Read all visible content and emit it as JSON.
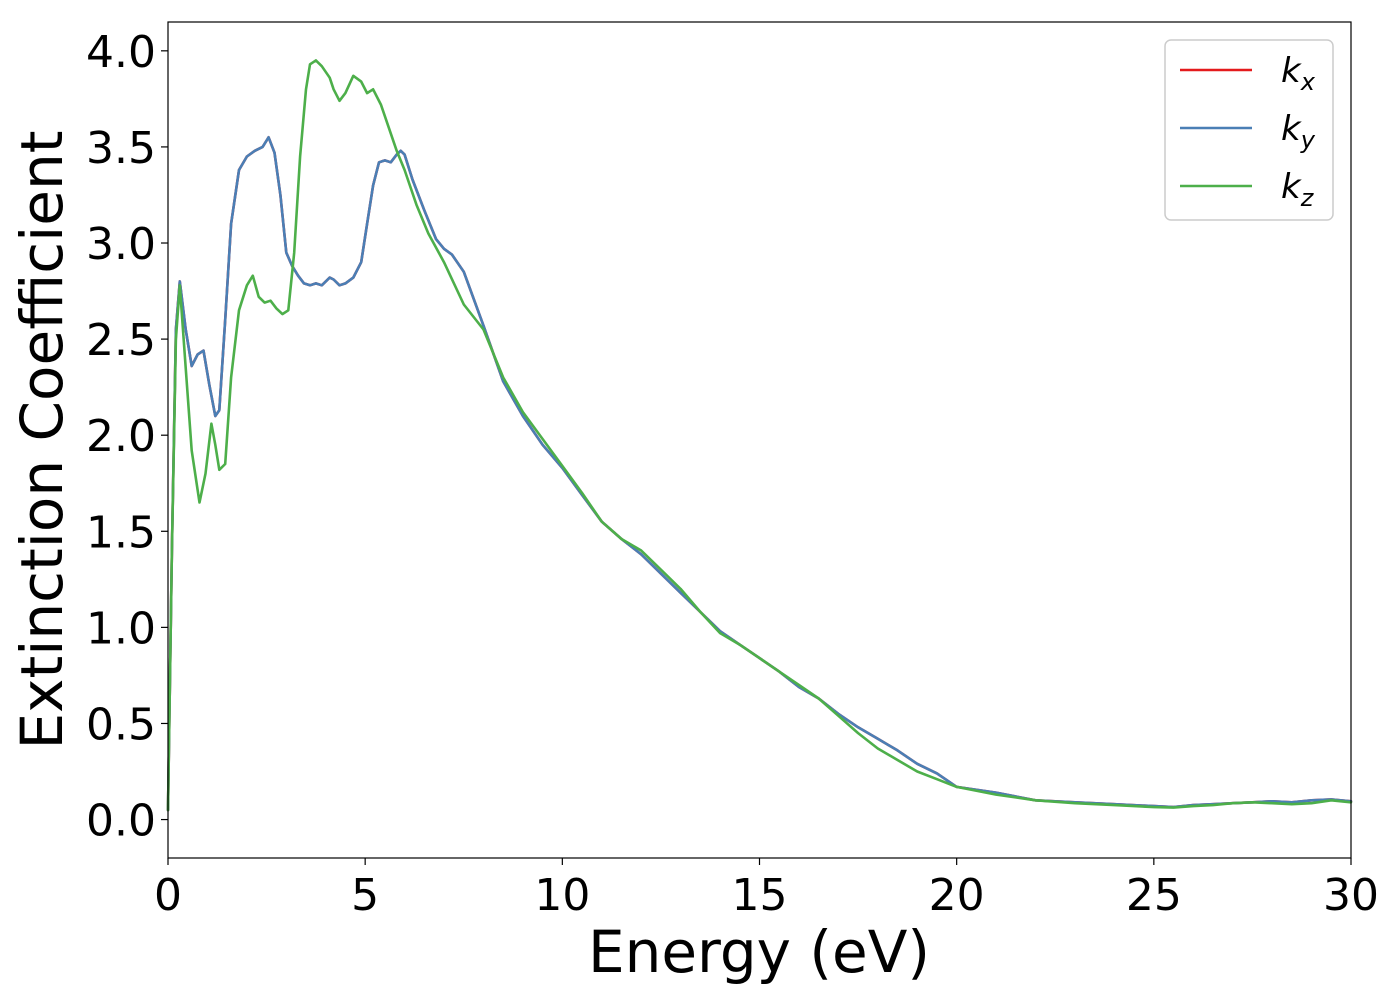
{
  "chart_data": {
    "type": "line",
    "title": "",
    "xlabel": "Energy (eV)",
    "ylabel": "Extinction Coefficient",
    "xlim": [
      0,
      30
    ],
    "ylim": [
      -0.2,
      4.15
    ],
    "xticks": [
      0,
      5,
      10,
      15,
      20,
      25,
      30
    ],
    "xtick_labels": [
      "0",
      "5",
      "10",
      "15",
      "20",
      "25",
      "30"
    ],
    "yticks": [
      0.0,
      0.5,
      1.0,
      1.5,
      2.0,
      2.5,
      3.0,
      3.5,
      4.0
    ],
    "ytick_labels": [
      "0.0",
      "0.5",
      "1.0",
      "1.5",
      "2.0",
      "2.5",
      "3.0",
      "3.5",
      "4.0"
    ],
    "grid": false,
    "legend_position": "top-right",
    "series": [
      {
        "name": "k",
        "subscript": "x",
        "color": "#e41a1c",
        "x": [
          0,
          0.1,
          0.2,
          0.3,
          0.45,
          0.6,
          0.75,
          0.9,
          1.05,
          1.2,
          1.3,
          1.45,
          1.6,
          1.8,
          2.0,
          2.2,
          2.4,
          2.55,
          2.7,
          2.85,
          3.0,
          3.15,
          3.3,
          3.45,
          3.6,
          3.75,
          3.9,
          4.1,
          4.2,
          4.35,
          4.5,
          4.7,
          4.9,
          5.05,
          5.2,
          5.35,
          5.5,
          5.65,
          5.8,
          5.9,
          6.0,
          6.2,
          6.5,
          6.8,
          7.0,
          7.2,
          7.5,
          8.0,
          8.5,
          9.0,
          9.5,
          10.0,
          10.5,
          11.0,
          11.5,
          12.0,
          12.5,
          13.0,
          13.5,
          14.0,
          14.5,
          15.0,
          15.5,
          16.0,
          16.5,
          17.0,
          17.5,
          18.0,
          18.5,
          19.0,
          19.5,
          20.0,
          21.0,
          22.0,
          23.0,
          24.0,
          25.0,
          25.5,
          26.0,
          26.5,
          27.0,
          27.5,
          28.0,
          28.5,
          29.0,
          29.5,
          30.0
        ],
        "y": [
          0.05,
          1.4,
          2.55,
          2.8,
          2.55,
          2.36,
          2.42,
          2.44,
          2.26,
          2.1,
          2.13,
          2.6,
          3.1,
          3.38,
          3.45,
          3.48,
          3.5,
          3.55,
          3.47,
          3.25,
          2.95,
          2.88,
          2.83,
          2.79,
          2.78,
          2.79,
          2.78,
          2.82,
          2.81,
          2.78,
          2.79,
          2.82,
          2.9,
          3.1,
          3.3,
          3.42,
          3.43,
          3.42,
          3.46,
          3.48,
          3.46,
          3.33,
          3.17,
          3.02,
          2.97,
          2.94,
          2.85,
          2.57,
          2.28,
          2.1,
          1.95,
          1.83,
          1.69,
          1.55,
          1.46,
          1.38,
          1.28,
          1.18,
          1.08,
          0.98,
          0.91,
          0.84,
          0.77,
          0.69,
          0.63,
          0.55,
          0.48,
          0.42,
          0.36,
          0.29,
          0.24,
          0.17,
          0.14,
          0.1,
          0.09,
          0.08,
          0.07,
          0.065,
          0.075,
          0.08,
          0.085,
          0.09,
          0.095,
          0.09,
          0.1,
          0.105,
          0.095
        ]
      },
      {
        "name": "k",
        "subscript": "y",
        "color": "#4a7fb5",
        "x": [
          0,
          0.1,
          0.2,
          0.3,
          0.45,
          0.6,
          0.75,
          0.9,
          1.05,
          1.2,
          1.3,
          1.45,
          1.6,
          1.8,
          2.0,
          2.2,
          2.4,
          2.55,
          2.7,
          2.85,
          3.0,
          3.15,
          3.3,
          3.45,
          3.6,
          3.75,
          3.9,
          4.1,
          4.2,
          4.35,
          4.5,
          4.7,
          4.9,
          5.05,
          5.2,
          5.35,
          5.5,
          5.65,
          5.8,
          5.9,
          6.0,
          6.2,
          6.5,
          6.8,
          7.0,
          7.2,
          7.5,
          8.0,
          8.5,
          9.0,
          9.5,
          10.0,
          10.5,
          11.0,
          11.5,
          12.0,
          12.5,
          13.0,
          13.5,
          14.0,
          14.5,
          15.0,
          15.5,
          16.0,
          16.5,
          17.0,
          17.5,
          18.0,
          18.5,
          19.0,
          19.5,
          20.0,
          21.0,
          22.0,
          23.0,
          24.0,
          25.0,
          25.5,
          26.0,
          26.5,
          27.0,
          27.5,
          28.0,
          28.5,
          29.0,
          29.5,
          30.0
        ],
        "y": [
          0.05,
          1.4,
          2.55,
          2.8,
          2.55,
          2.36,
          2.42,
          2.44,
          2.26,
          2.1,
          2.13,
          2.6,
          3.1,
          3.38,
          3.45,
          3.48,
          3.5,
          3.55,
          3.47,
          3.25,
          2.95,
          2.88,
          2.83,
          2.79,
          2.78,
          2.79,
          2.78,
          2.82,
          2.81,
          2.78,
          2.79,
          2.82,
          2.9,
          3.1,
          3.3,
          3.42,
          3.43,
          3.42,
          3.46,
          3.48,
          3.46,
          3.33,
          3.17,
          3.02,
          2.97,
          2.94,
          2.85,
          2.57,
          2.28,
          2.1,
          1.95,
          1.83,
          1.69,
          1.55,
          1.46,
          1.38,
          1.28,
          1.18,
          1.08,
          0.98,
          0.91,
          0.84,
          0.77,
          0.69,
          0.63,
          0.55,
          0.48,
          0.42,
          0.36,
          0.29,
          0.24,
          0.17,
          0.14,
          0.1,
          0.09,
          0.08,
          0.07,
          0.065,
          0.075,
          0.08,
          0.085,
          0.09,
          0.095,
          0.09,
          0.1,
          0.105,
          0.095
        ]
      },
      {
        "name": "k",
        "subscript": "z",
        "color": "#4daf4a",
        "x": [
          0,
          0.1,
          0.2,
          0.3,
          0.45,
          0.6,
          0.8,
          0.95,
          1.1,
          1.2,
          1.3,
          1.45,
          1.6,
          1.8,
          2.0,
          2.15,
          2.3,
          2.45,
          2.6,
          2.75,
          2.9,
          3.05,
          3.2,
          3.35,
          3.5,
          3.6,
          3.75,
          3.9,
          4.1,
          4.2,
          4.35,
          4.5,
          4.7,
          4.9,
          5.05,
          5.2,
          5.4,
          5.6,
          5.8,
          6.0,
          6.3,
          6.6,
          7.0,
          7.5,
          8.0,
          8.5,
          9.0,
          9.5,
          10.0,
          10.5,
          11.0,
          11.5,
          12.0,
          12.5,
          13.0,
          13.5,
          14.0,
          14.5,
          15.0,
          15.5,
          16.0,
          16.5,
          17.0,
          17.5,
          18.0,
          18.5,
          19.0,
          19.5,
          20.0,
          21.0,
          22.0,
          23.0,
          24.0,
          25.0,
          25.5,
          26.0,
          26.5,
          27.0,
          27.5,
          28.0,
          28.5,
          29.0,
          29.5,
          30.0
        ],
        "y": [
          0.05,
          1.4,
          2.5,
          2.78,
          2.35,
          1.92,
          1.65,
          1.8,
          2.06,
          1.95,
          1.82,
          1.85,
          2.3,
          2.65,
          2.78,
          2.83,
          2.72,
          2.69,
          2.7,
          2.66,
          2.63,
          2.65,
          2.95,
          3.45,
          3.8,
          3.93,
          3.95,
          3.92,
          3.86,
          3.8,
          3.74,
          3.78,
          3.87,
          3.84,
          3.78,
          3.8,
          3.72,
          3.6,
          3.48,
          3.38,
          3.2,
          3.05,
          2.9,
          2.68,
          2.55,
          2.3,
          2.12,
          1.98,
          1.84,
          1.7,
          1.55,
          1.46,
          1.4,
          1.3,
          1.2,
          1.08,
          0.97,
          0.91,
          0.84,
          0.77,
          0.7,
          0.63,
          0.54,
          0.45,
          0.37,
          0.31,
          0.25,
          0.21,
          0.17,
          0.13,
          0.1,
          0.085,
          0.075,
          0.065,
          0.062,
          0.07,
          0.075,
          0.085,
          0.09,
          0.085,
          0.08,
          0.085,
          0.1,
          0.09
        ]
      }
    ]
  }
}
